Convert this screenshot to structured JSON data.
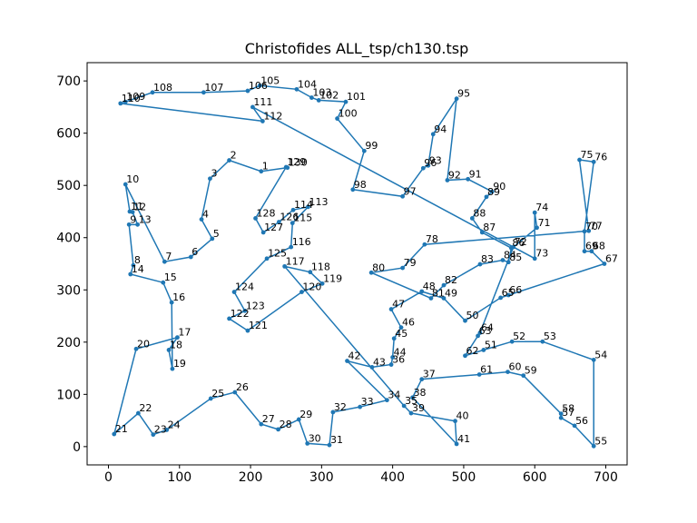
{
  "chart_data": {
    "type": "line",
    "title": "Christofides ALL_tsp/ch130.tsp",
    "xlabel": "",
    "ylabel": "",
    "xlim": [
      -30,
      730
    ],
    "ylim": [
      -35,
      735
    ],
    "x_ticks": [
      0,
      100,
      200,
      300,
      400,
      500,
      600,
      700
    ],
    "y_ticks": [
      0,
      100,
      200,
      300,
      400,
      500,
      600,
      700
    ],
    "grid": false,
    "series_color": "#1f77b4",
    "points": [
      {
        "id": "1",
        "x": 215,
        "y": 527
      },
      {
        "id": "2",
        "x": 170,
        "y": 548
      },
      {
        "id": "3",
        "x": 143,
        "y": 513
      },
      {
        "id": "4",
        "x": 131,
        "y": 435
      },
      {
        "id": "5",
        "x": 146,
        "y": 398
      },
      {
        "id": "6",
        "x": 116,
        "y": 363
      },
      {
        "id": "7",
        "x": 79,
        "y": 354
      },
      {
        "id": "8",
        "x": 35,
        "y": 347
      },
      {
        "id": "9",
        "x": 29,
        "y": 425
      },
      {
        "id": "10",
        "x": 24,
        "y": 502
      },
      {
        "id": "11",
        "x": 30,
        "y": 450
      },
      {
        "id": "12",
        "x": 34,
        "y": 449
      },
      {
        "id": "13",
        "x": 41,
        "y": 425
      },
      {
        "id": "14",
        "x": 31,
        "y": 330
      },
      {
        "id": "15",
        "x": 77,
        "y": 314
      },
      {
        "id": "16",
        "x": 89,
        "y": 276
      },
      {
        "id": "17",
        "x": 97,
        "y": 209
      },
      {
        "id": "18",
        "x": 85,
        "y": 185
      },
      {
        "id": "19",
        "x": 90,
        "y": 149
      },
      {
        "id": "20",
        "x": 39,
        "y": 187
      },
      {
        "id": "21",
        "x": 8,
        "y": 24
      },
      {
        "id": "22",
        "x": 42,
        "y": 64
      },
      {
        "id": "23",
        "x": 63,
        "y": 23
      },
      {
        "id": "24",
        "x": 82,
        "y": 32
      },
      {
        "id": "25",
        "x": 144,
        "y": 92
      },
      {
        "id": "26",
        "x": 178,
        "y": 104
      },
      {
        "id": "27",
        "x": 215,
        "y": 43
      },
      {
        "id": "28",
        "x": 239,
        "y": 33
      },
      {
        "id": "29",
        "x": 268,
        "y": 52
      },
      {
        "id": "30",
        "x": 280,
        "y": 6
      },
      {
        "id": "31",
        "x": 311,
        "y": 3
      },
      {
        "id": "32",
        "x": 316,
        "y": 66
      },
      {
        "id": "33",
        "x": 354,
        "y": 76
      },
      {
        "id": "34",
        "x": 392,
        "y": 89
      },
      {
        "id": "35",
        "x": 416,
        "y": 78
      },
      {
        "id": "36",
        "x": 398,
        "y": 157
      },
      {
        "id": "37",
        "x": 441,
        "y": 129
      },
      {
        "id": "38",
        "x": 428,
        "y": 94
      },
      {
        "id": "39",
        "x": 426,
        "y": 64
      },
      {
        "id": "40",
        "x": 488,
        "y": 49
      },
      {
        "id": "41",
        "x": 490,
        "y": 5
      },
      {
        "id": "42",
        "x": 336,
        "y": 164
      },
      {
        "id": "43",
        "x": 371,
        "y": 152
      },
      {
        "id": "44",
        "x": 400,
        "y": 171
      },
      {
        "id": "45",
        "x": 402,
        "y": 207
      },
      {
        "id": "46",
        "x": 412,
        "y": 228
      },
      {
        "id": "47",
        "x": 398,
        "y": 263
      },
      {
        "id": "48",
        "x": 441,
        "y": 297
      },
      {
        "id": "49",
        "x": 472,
        "y": 284
      },
      {
        "id": "50",
        "x": 502,
        "y": 241
      },
      {
        "id": "51",
        "x": 528,
        "y": 185
      },
      {
        "id": "52",
        "x": 568,
        "y": 201
      },
      {
        "id": "53",
        "x": 611,
        "y": 201
      },
      {
        "id": "54",
        "x": 683,
        "y": 166
      },
      {
        "id": "55",
        "x": 683,
        "y": 1
      },
      {
        "id": "56",
        "x": 656,
        "y": 40
      },
      {
        "id": "57",
        "x": 637,
        "y": 55
      },
      {
        "id": "58",
        "x": 637,
        "y": 63
      },
      {
        "id": "59",
        "x": 584,
        "y": 136
      },
      {
        "id": "60",
        "x": 562,
        "y": 143
      },
      {
        "id": "61",
        "x": 522,
        "y": 138
      },
      {
        "id": "62",
        "x": 502,
        "y": 174
      },
      {
        "id": "63",
        "x": 520,
        "y": 212
      },
      {
        "id": "64",
        "x": 523,
        "y": 218
      },
      {
        "id": "65",
        "x": 552,
        "y": 285
      },
      {
        "id": "66",
        "x": 563,
        "y": 290
      },
      {
        "id": "67",
        "x": 698,
        "y": 350
      },
      {
        "id": "68",
        "x": 680,
        "y": 374
      },
      {
        "id": "69",
        "x": 670,
        "y": 374
      },
      {
        "id": "70",
        "x": 670,
        "y": 412
      },
      {
        "id": "71",
        "x": 603,
        "y": 419
      },
      {
        "id": "72",
        "x": 570,
        "y": 382
      },
      {
        "id": "73",
        "x": 600,
        "y": 360
      },
      {
        "id": "74",
        "x": 600,
        "y": 448
      },
      {
        "id": "75",
        "x": 663,
        "y": 549
      },
      {
        "id": "76",
        "x": 683,
        "y": 545
      },
      {
        "id": "77",
        "x": 676,
        "y": 413
      },
      {
        "id": "78",
        "x": 445,
        "y": 387
      },
      {
        "id": "79",
        "x": 414,
        "y": 342
      },
      {
        "id": "80",
        "x": 370,
        "y": 333
      },
      {
        "id": "81",
        "x": 454,
        "y": 284
      },
      {
        "id": "82",
        "x": 472,
        "y": 309
      },
      {
        "id": "83",
        "x": 523,
        "y": 349
      },
      {
        "id": "84",
        "x": 555,
        "y": 357
      },
      {
        "id": "85",
        "x": 563,
        "y": 353
      },
      {
        "id": "86",
        "x": 567,
        "y": 380
      },
      {
        "id": "87",
        "x": 526,
        "y": 410
      },
      {
        "id": "88",
        "x": 512,
        "y": 437
      },
      {
        "id": "89",
        "x": 532,
        "y": 478
      },
      {
        "id": "90",
        "x": 540,
        "y": 488
      },
      {
        "id": "91",
        "x": 506,
        "y": 512
      },
      {
        "id": "92",
        "x": 477,
        "y": 510
      },
      {
        "id": "93",
        "x": 450,
        "y": 538
      },
      {
        "id": "94",
        "x": 457,
        "y": 598
      },
      {
        "id": "95",
        "x": 490,
        "y": 666
      },
      {
        "id": "96",
        "x": 443,
        "y": 533
      },
      {
        "id": "97",
        "x": 414,
        "y": 479
      },
      {
        "id": "98",
        "x": 344,
        "y": 492
      },
      {
        "id": "99",
        "x": 360,
        "y": 566
      },
      {
        "id": "100",
        "x": 322,
        "y": 628
      },
      {
        "id": "101",
        "x": 334,
        "y": 660
      },
      {
        "id": "102",
        "x": 296,
        "y": 663
      },
      {
        "id": "103",
        "x": 286,
        "y": 668
      },
      {
        "id": "104",
        "x": 265,
        "y": 684
      },
      {
        "id": "105",
        "x": 213,
        "y": 691
      },
      {
        "id": "106",
        "x": 196,
        "y": 681
      },
      {
        "id": "107",
        "x": 134,
        "y": 678
      },
      {
        "id": "108",
        "x": 62,
        "y": 678
      },
      {
        "id": "109",
        "x": 24,
        "y": 660
      },
      {
        "id": "110",
        "x": 17,
        "y": 657
      },
      {
        "id": "111",
        "x": 203,
        "y": 650
      },
      {
        "id": "112",
        "x": 217,
        "y": 623
      },
      {
        "id": "113",
        "x": 281,
        "y": 459
      },
      {
        "id": "114",
        "x": 260,
        "y": 453
      },
      {
        "id": "115",
        "x": 259,
        "y": 428
      },
      {
        "id": "116",
        "x": 257,
        "y": 382
      },
      {
        "id": "117",
        "x": 248,
        "y": 345
      },
      {
        "id": "118",
        "x": 284,
        "y": 334
      },
      {
        "id": "119",
        "x": 301,
        "y": 312
      },
      {
        "id": "120",
        "x": 272,
        "y": 296
      },
      {
        "id": "121",
        "x": 196,
        "y": 222
      },
      {
        "id": "122",
        "x": 170,
        "y": 245
      },
      {
        "id": "123",
        "x": 192,
        "y": 260
      },
      {
        "id": "124",
        "x": 177,
        "y": 296
      },
      {
        "id": "125",
        "x": 223,
        "y": 360
      },
      {
        "id": "126",
        "x": 240,
        "y": 430
      },
      {
        "id": "127",
        "x": 218,
        "y": 410
      },
      {
        "id": "128",
        "x": 207,
        "y": 437
      },
      {
        "id": "129",
        "x": 250,
        "y": 535
      },
      {
        "id": "130",
        "x": 252,
        "y": 534
      }
    ],
    "tour": [
      "110",
      "109",
      "108",
      "107",
      "106",
      "105",
      "104",
      "103",
      "102",
      "101",
      "100",
      "99",
      "98",
      "97",
      "96",
      "93",
      "94",
      "95",
      "92",
      "91",
      "90",
      "89",
      "88",
      "87",
      "86",
      "85",
      "84",
      "83",
      "82",
      "81",
      "80",
      "79",
      "78",
      "77",
      "75",
      "76",
      "70",
      "69",
      "68",
      "67",
      "66",
      "65",
      "50",
      "49",
      "48",
      "47",
      "46",
      "45",
      "44",
      "36",
      "43",
      "42",
      "34",
      "33",
      "32",
      "31",
      "30",
      "29",
      "28",
      "27",
      "26",
      "25",
      "24",
      "23",
      "22",
      "21",
      "20",
      "17",
      "18",
      "19",
      "16",
      "15",
      "14",
      "8",
      "9",
      "13",
      "12",
      "11",
      "10",
      "7",
      "6",
      "5",
      "4",
      "3",
      "2",
      "1",
      "130",
      "129",
      "128",
      "127",
      "126",
      "114",
      "113",
      "115",
      "116",
      "125",
      "124",
      "123",
      "122",
      "121",
      "120",
      "119",
      "118",
      "117",
      "35",
      "39",
      "40",
      "41",
      "38",
      "37",
      "61",
      "60",
      "59",
      "58",
      "57",
      "56",
      "55",
      "54",
      "53",
      "52",
      "51",
      "62",
      "63",
      "64",
      "72",
      "71",
      "74",
      "73",
      "111",
      "112",
      "110"
    ]
  }
}
